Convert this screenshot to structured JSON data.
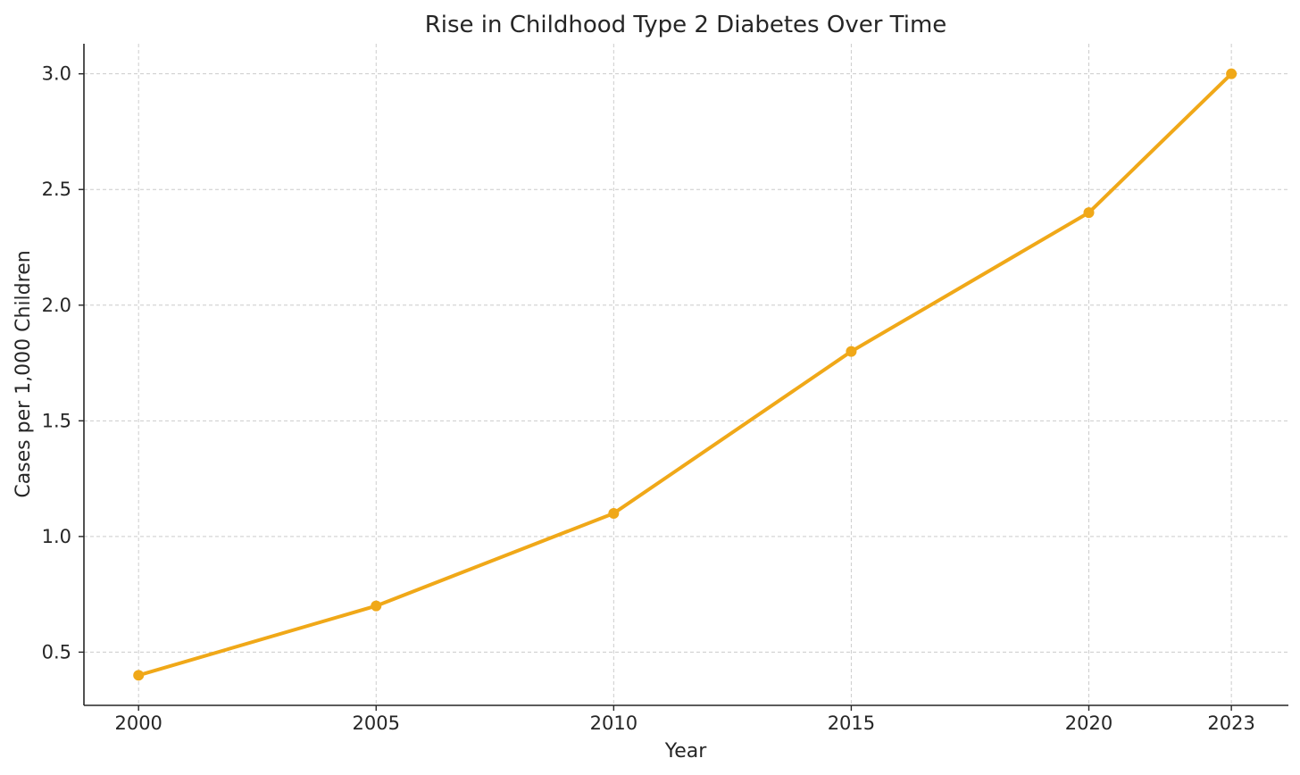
{
  "chart_data": {
    "type": "line",
    "title": "Rise in Childhood Type 2 Diabetes Over Time",
    "xlabel": "Year",
    "ylabel": "Cases per 1,000 Children",
    "x": [
      2000,
      2005,
      2010,
      2015,
      2020,
      2023
    ],
    "x_tick_labels": [
      "2000",
      "2005",
      "2010",
      "2015",
      "2020",
      "2023"
    ],
    "series": [
      {
        "values": [
          0.4,
          0.7,
          1.1,
          1.8,
          2.4,
          3.0
        ],
        "color": "#f0a818"
      }
    ],
    "y_ticks": [
      0.5,
      1.0,
      1.5,
      2.0,
      2.5,
      3.0
    ],
    "y_tick_labels": [
      "0.5",
      "1.0",
      "1.5",
      "2.0",
      "2.5",
      "3.0"
    ],
    "xlim": [
      1998.85,
      2024.2
    ],
    "ylim": [
      0.27,
      3.13
    ],
    "grid": true,
    "legend": "none"
  }
}
